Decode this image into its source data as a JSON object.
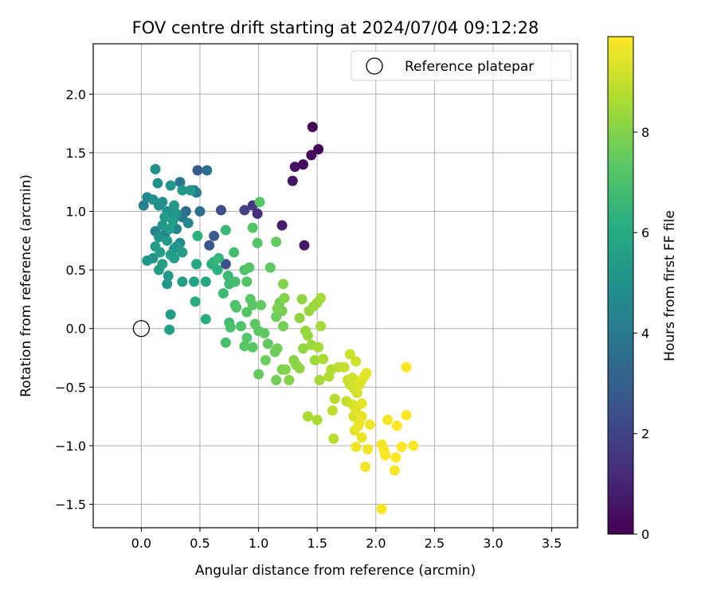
{
  "chart_data": {
    "type": "scatter",
    "title": "FOV centre drift starting at 2024/07/04 09:12:28",
    "xlabel": "Angular distance from reference (arcmin)",
    "ylabel": "Rotation from reference (arcmin)",
    "xlim": [
      -0.41,
      3.72
    ],
    "ylim": [
      -1.7,
      2.43
    ],
    "xticks": [
      0.0,
      0.5,
      1.0,
      1.5,
      2.0,
      2.5,
      3.0,
      3.5
    ],
    "yticks": [
      -1.5,
      -1.0,
      -0.5,
      0.0,
      0.5,
      1.0,
      1.5,
      2.0
    ],
    "grid": true,
    "legend": {
      "placement": "top-right",
      "entries": [
        "Reference platepar"
      ]
    },
    "reference_point": {
      "name": "Reference platepar",
      "x": 0.0,
      "y": 0.0
    },
    "colorbar": {
      "label": "Hours from first FF file",
      "range": [
        0,
        9.9
      ],
      "ticks": [
        0,
        2,
        4,
        6,
        8
      ],
      "colormap": "viridis"
    },
    "points": [
      [
        1.46,
        1.72,
        0.05
      ],
      [
        1.51,
        1.53,
        0.15
      ],
      [
        1.45,
        1.48,
        0.25
      ],
      [
        1.38,
        1.4,
        0.35
      ],
      [
        1.31,
        1.38,
        0.45
      ],
      [
        1.29,
        1.26,
        0.55
      ],
      [
        1.39,
        0.71,
        0.65
      ],
      [
        1.2,
        0.88,
        0.8
      ],
      [
        0.99,
        0.98,
        1.2
      ],
      [
        0.95,
        1.05,
        1.6
      ],
      [
        0.88,
        1.01,
        1.9
      ],
      [
        0.68,
        1.01,
        2.3
      ],
      [
        0.48,
        1.35,
        2.8
      ],
      [
        0.58,
        0.71,
        2.6
      ],
      [
        0.62,
        0.79,
        2.9
      ],
      [
        0.72,
        0.55,
        2.4
      ],
      [
        0.56,
        1.35,
        3.6
      ],
      [
        0.33,
        1.25,
        3.8
      ],
      [
        0.45,
        1.18,
        4.0
      ],
      [
        0.47,
        1.16,
        4.2
      ],
      [
        0.38,
        1.0,
        3.4
      ],
      [
        0.5,
        1.0,
        3.5
      ],
      [
        0.35,
        0.95,
        3.9
      ],
      [
        0.25,
        0.98,
        4.3
      ],
      [
        0.4,
        0.9,
        4.5
      ],
      [
        0.3,
        0.85,
        4.4
      ],
      [
        0.2,
        0.8,
        4.1
      ],
      [
        0.33,
        0.73,
        4.6
      ],
      [
        0.28,
        0.68,
        4.7
      ],
      [
        0.12,
        0.83,
        4.2
      ],
      [
        0.15,
        1.05,
        4.8
      ],
      [
        0.05,
        1.12,
        4.5
      ],
      [
        0.02,
        1.05,
        4.3
      ],
      [
        0.1,
        1.1,
        4.9
      ],
      [
        0.18,
        1.08,
        5.0
      ],
      [
        0.25,
        1.22,
        5.1
      ],
      [
        0.14,
        1.24,
        5.0
      ],
      [
        0.12,
        1.36,
        4.9
      ],
      [
        0.42,
        1.18,
        5.2
      ],
      [
        0.35,
        1.18,
        5.3
      ],
      [
        0.28,
        1.05,
        5.2
      ],
      [
        0.22,
        1.0,
        5.0
      ],
      [
        0.3,
        0.98,
        5.1
      ],
      [
        0.2,
        0.95,
        5.3
      ],
      [
        0.27,
        0.92,
        5.4
      ],
      [
        0.18,
        0.88,
        5.2
      ],
      [
        0.24,
        0.85,
        5.5
      ],
      [
        0.15,
        0.78,
        5.1
      ],
      [
        0.22,
        0.75,
        5.3
      ],
      [
        0.3,
        0.7,
        5.2
      ],
      [
        0.12,
        0.7,
        5.4
      ],
      [
        0.16,
        0.65,
        5.5
      ],
      [
        0.25,
        0.63,
        5.6
      ],
      [
        0.35,
        0.65,
        5.4
      ],
      [
        0.1,
        0.6,
        5.2
      ],
      [
        0.05,
        0.58,
        5.3
      ],
      [
        0.18,
        0.55,
        5.6
      ],
      [
        0.28,
        0.6,
        5.5
      ],
      [
        0.15,
        0.5,
        5.4
      ],
      [
        0.23,
        0.45,
        5.3
      ],
      [
        0.22,
        0.38,
        5.2
      ],
      [
        0.35,
        0.4,
        5.5
      ],
      [
        0.25,
        0.12,
        5.4
      ],
      [
        0.24,
        -0.01,
        5.6
      ],
      [
        0.47,
        0.55,
        5.8
      ],
      [
        0.45,
        0.4,
        5.7
      ],
      [
        0.55,
        0.4,
        5.9
      ],
      [
        0.46,
        0.23,
        6.0
      ],
      [
        0.55,
        0.08,
        6.1
      ],
      [
        0.6,
        0.55,
        6.2
      ],
      [
        0.65,
        0.5,
        6.3
      ],
      [
        0.62,
        0.57,
        6.4
      ],
      [
        0.66,
        0.6,
        6.5
      ],
      [
        0.72,
        0.84,
        6.6
      ],
      [
        0.48,
        0.79,
        6.3
      ],
      [
        0.74,
        0.45,
        6.6
      ],
      [
        0.75,
        0.38,
        6.7
      ],
      [
        0.79,
        0.65,
        6.8
      ],
      [
        0.8,
        0.4,
        6.9
      ],
      [
        0.7,
        0.3,
        6.7
      ],
      [
        0.72,
        -0.12,
        6.9
      ],
      [
        0.75,
        0.05,
        6.8
      ],
      [
        0.76,
        0.01,
        7.0
      ],
      [
        0.8,
        0.2,
        7.0
      ],
      [
        0.81,
        0.18,
        7.1
      ],
      [
        0.85,
        0.02,
        7.1
      ],
      [
        0.88,
        0.5,
        7.1
      ],
      [
        0.9,
        0.4,
        7.2
      ],
      [
        0.92,
        0.52,
        7.2
      ],
      [
        0.95,
        0.86,
        7.2
      ],
      [
        0.99,
        0.73,
        7.2
      ],
      [
        1.01,
        1.08,
        7.3
      ],
      [
        0.9,
        0.14,
        7.2
      ],
      [
        0.93,
        0.25,
        7.3
      ],
      [
        0.95,
        0.2,
        7.3
      ],
      [
        0.88,
        -0.15,
        7.3
      ],
      [
        0.9,
        -0.08,
        7.2
      ],
      [
        0.95,
        -0.16,
        7.3
      ],
      [
        0.97,
        0.04,
        7.4
      ],
      [
        1.0,
        -0.02,
        7.4
      ],
      [
        1.02,
        0.2,
        7.5
      ],
      [
        1.05,
        -0.04,
        7.4
      ],
      [
        1.08,
        -0.13,
        7.5
      ],
      [
        1.1,
        0.52,
        7.4
      ],
      [
        1.15,
        0.74,
        7.5
      ],
      [
        1.0,
        -0.39,
        7.5
      ],
      [
        1.06,
        -0.27,
        7.6
      ],
      [
        1.14,
        -0.2,
        7.6
      ],
      [
        1.16,
        -0.17,
        7.7
      ],
      [
        1.15,
        -0.44,
        7.7
      ],
      [
        1.15,
        0.1,
        7.6
      ],
      [
        1.18,
        0.22,
        7.7
      ],
      [
        1.2,
        0.15,
        7.8
      ],
      [
        1.16,
        0.17,
        7.9
      ],
      [
        1.21,
        0.02,
        7.8
      ],
      [
        1.2,
        -0.35,
        7.9
      ],
      [
        1.23,
        -0.35,
        8.0
      ],
      [
        1.22,
        0.26,
        8.0
      ],
      [
        1.21,
        0.38,
        8.0
      ],
      [
        1.26,
        -0.44,
        8.0
      ],
      [
        1.3,
        -0.27,
        8.1
      ],
      [
        1.32,
        -0.31,
        8.1
      ],
      [
        1.35,
        -0.34,
        8.2
      ],
      [
        1.37,
        0.25,
        8.2
      ],
      [
        1.38,
        -0.17,
        8.2
      ],
      [
        1.35,
        0.09,
        8.2
      ],
      [
        1.4,
        -0.02,
        8.3
      ],
      [
        1.42,
        -0.06,
        8.3
      ],
      [
        1.43,
        0.15,
        8.3
      ],
      [
        1.45,
        -0.14,
        8.4
      ],
      [
        1.47,
        0.19,
        8.4
      ],
      [
        1.48,
        -0.27,
        8.4
      ],
      [
        1.5,
        0.22,
        8.4
      ],
      [
        1.53,
        0.26,
        8.5
      ],
      [
        1.51,
        -0.16,
        8.5
      ],
      [
        1.52,
        -0.44,
        8.5
      ],
      [
        1.53,
        0.02,
        8.5
      ],
      [
        1.5,
        -0.78,
        8.6
      ],
      [
        1.42,
        -0.75,
        8.6
      ],
      [
        1.55,
        -0.26,
        8.6
      ],
      [
        1.6,
        -0.41,
        8.7
      ],
      [
        1.62,
        -0.35,
        8.7
      ],
      [
        1.64,
        -0.94,
        8.8
      ],
      [
        1.65,
        -0.6,
        8.8
      ],
      [
        1.63,
        -0.7,
        8.9
      ],
      [
        1.68,
        -0.33,
        8.9
      ],
      [
        1.73,
        -0.33,
        9.0
      ],
      [
        1.75,
        -0.62,
        9.0
      ],
      [
        1.76,
        -0.44,
        9.1
      ],
      [
        1.78,
        -0.22,
        9.1
      ],
      [
        1.78,
        -0.48,
        9.1
      ],
      [
        1.8,
        -0.42,
        9.2
      ],
      [
        1.81,
        -0.51,
        9.2
      ],
      [
        1.83,
        -0.28,
        9.2
      ],
      [
        1.84,
        -0.55,
        9.3
      ],
      [
        1.8,
        -0.65,
        9.3
      ],
      [
        1.81,
        -0.75,
        9.3
      ],
      [
        1.83,
        -0.7,
        9.4
      ],
      [
        1.86,
        -0.48,
        9.4
      ],
      [
        1.88,
        -0.44,
        9.4
      ],
      [
        1.9,
        -0.41,
        9.5
      ],
      [
        1.92,
        -0.38,
        9.5
      ],
      [
        1.88,
        -0.64,
        9.5
      ],
      [
        1.82,
        -0.87,
        9.5
      ],
      [
        1.85,
        -0.83,
        9.6
      ],
      [
        1.88,
        -0.75,
        9.6
      ],
      [
        1.86,
        -0.8,
        9.6
      ],
      [
        1.88,
        -0.93,
        9.6
      ],
      [
        1.83,
        -1.01,
        9.7
      ],
      [
        1.91,
        -1.18,
        9.7
      ],
      [
        1.93,
        -1.03,
        9.7
      ],
      [
        1.95,
        -0.82,
        9.7
      ],
      [
        2.05,
        -0.99,
        9.8
      ],
      [
        2.07,
        -1.04,
        9.8
      ],
      [
        2.08,
        -1.08,
        9.8
      ],
      [
        2.1,
        -0.78,
        9.8
      ],
      [
        2.16,
        -1.21,
        9.8
      ],
      [
        2.17,
        -1.1,
        9.9
      ],
      [
        2.18,
        -0.83,
        9.9
      ],
      [
        2.22,
        -1.01,
        9.9
      ],
      [
        2.26,
        -0.74,
        9.9
      ],
      [
        2.32,
        -1.0,
        9.9
      ],
      [
        2.26,
        -0.33,
        9.9
      ],
      [
        2.05,
        -1.54,
        9.9
      ]
    ]
  }
}
